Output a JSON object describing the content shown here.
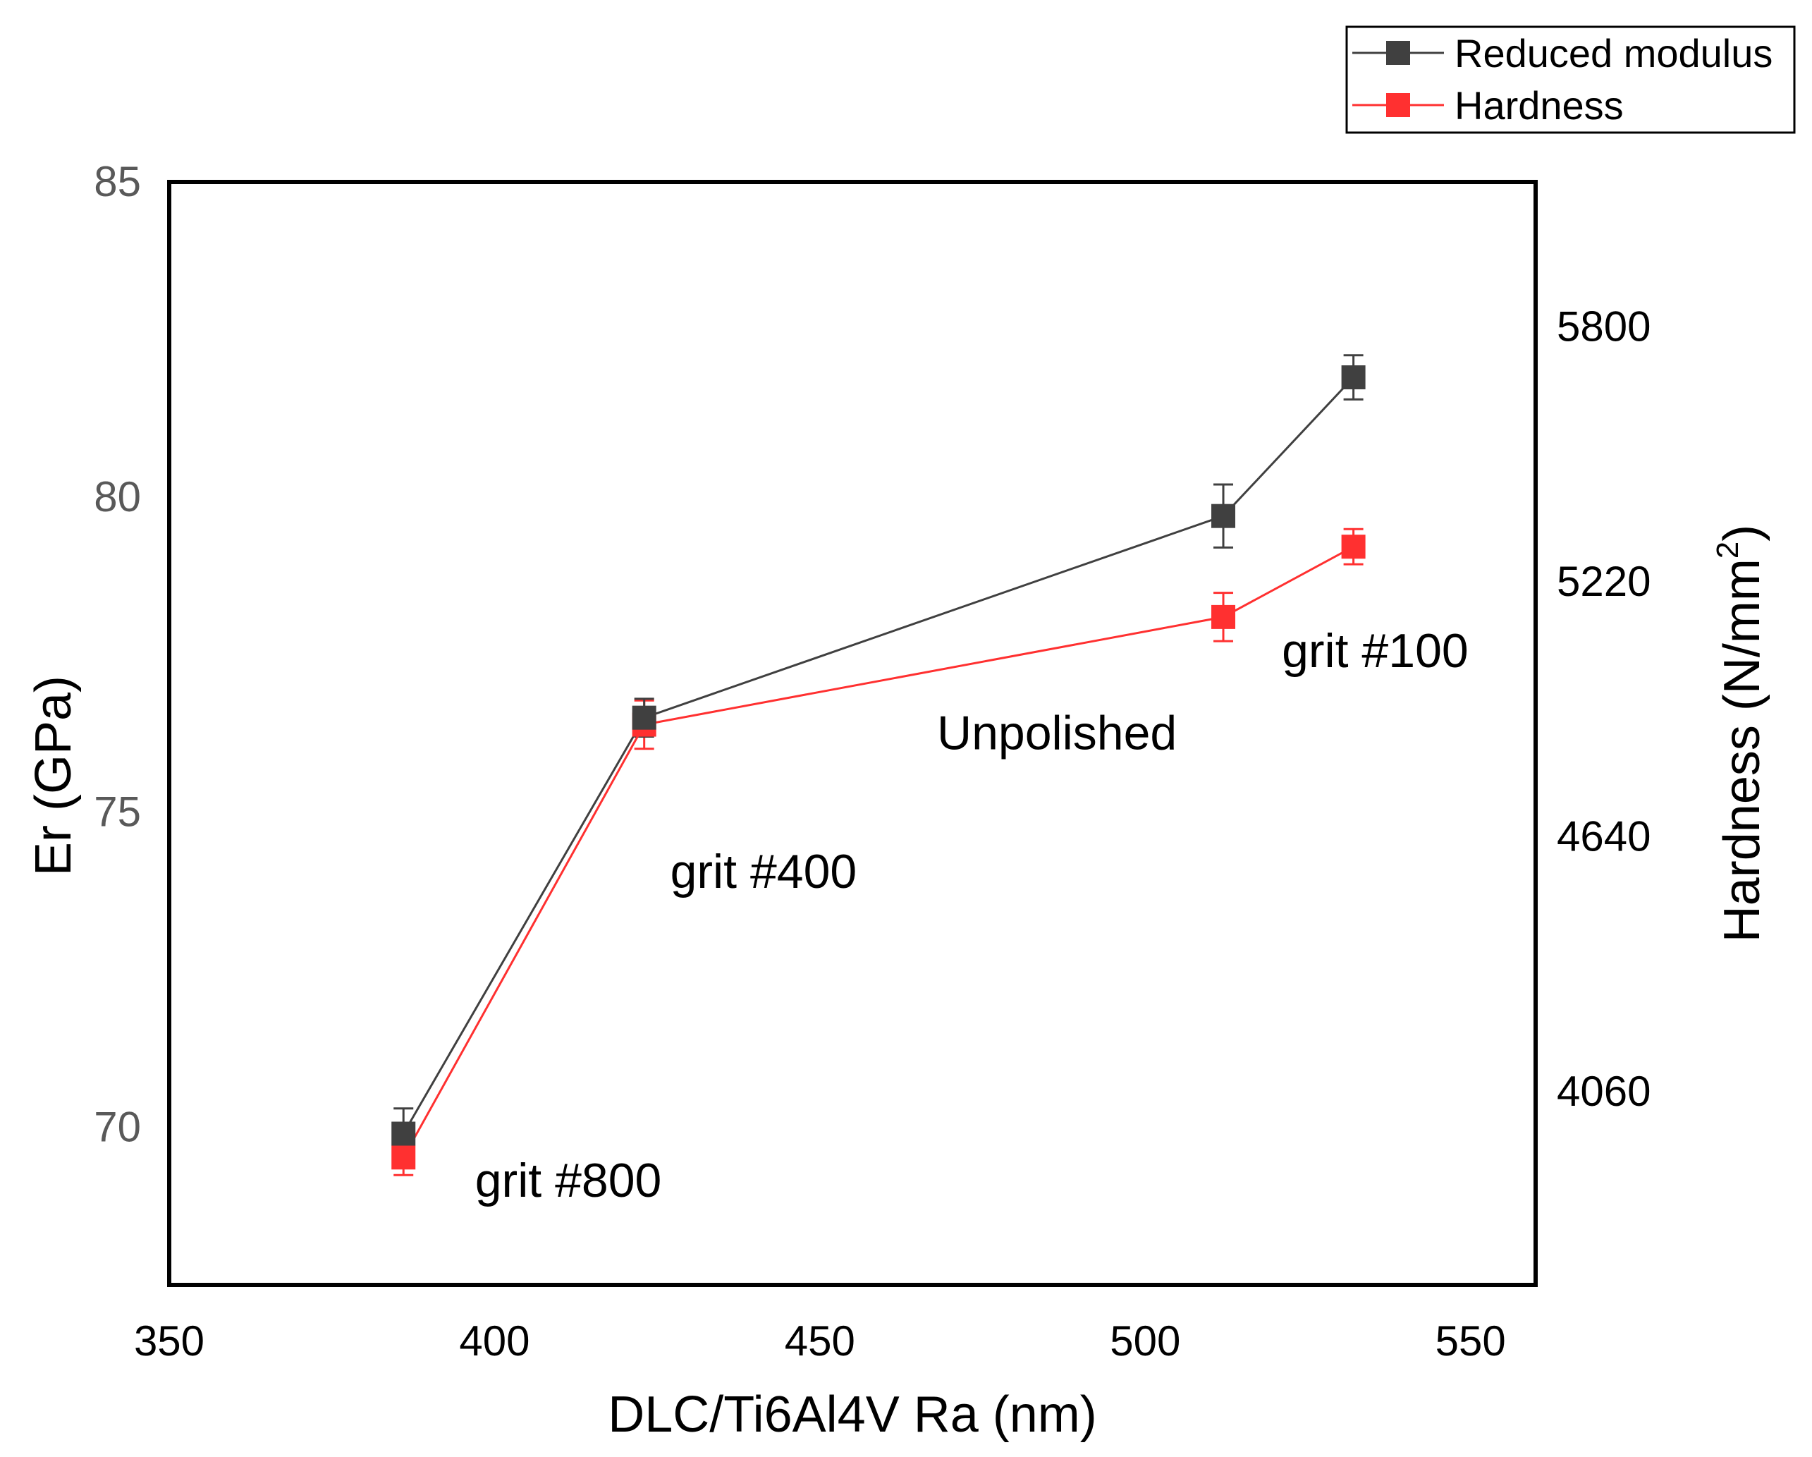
{
  "chart_data": {
    "type": "line",
    "xlabel": "DLC/Ti6Al4V Ra (nm)",
    "ylabel_left": "Er  (GPa)",
    "ylabel_right_prefix": "Hardness (N/mm",
    "ylabel_right_sup": "2",
    "ylabel_right_suffix": ")",
    "xlim": [
      350,
      560
    ],
    "x_ticks": [
      350,
      400,
      450,
      500,
      550
    ],
    "ylim_left": [
      67.5,
      85
    ],
    "y_ticks_left": [
      70,
      75,
      80,
      85
    ],
    "ylim_right": [
      3620,
      6130
    ],
    "y_ticks_right": [
      4060,
      4640,
      5220,
      5800
    ],
    "legend_position": "top-right",
    "grid": false,
    "series": [
      {
        "name": "Reduced modulus",
        "axis": "left",
        "color": "#404040",
        "x": [
          386,
          423,
          512,
          532
        ],
        "y": [
          69.9,
          76.5,
          79.7,
          81.9
        ],
        "err": [
          0.4,
          0.3,
          0.5,
          0.35
        ]
      },
      {
        "name": "Hardness",
        "axis": "right",
        "color": "#ff3030",
        "x": [
          386,
          423,
          512,
          532
        ],
        "y": [
          3910,
          4895,
          5140,
          5300
        ],
        "err": [
          40,
          55,
          55,
          40
        ]
      }
    ],
    "annotations": [
      {
        "text": "grit #800",
        "x": 397,
        "y_left": 68.9
      },
      {
        "text": "grit #400",
        "x": 427,
        "y_left": 73.8
      },
      {
        "text": "Unpolished",
        "x": 468,
        "y_left": 76.0
      },
      {
        "text": "grit #100",
        "x": 521,
        "y_left": 77.3
      }
    ]
  }
}
